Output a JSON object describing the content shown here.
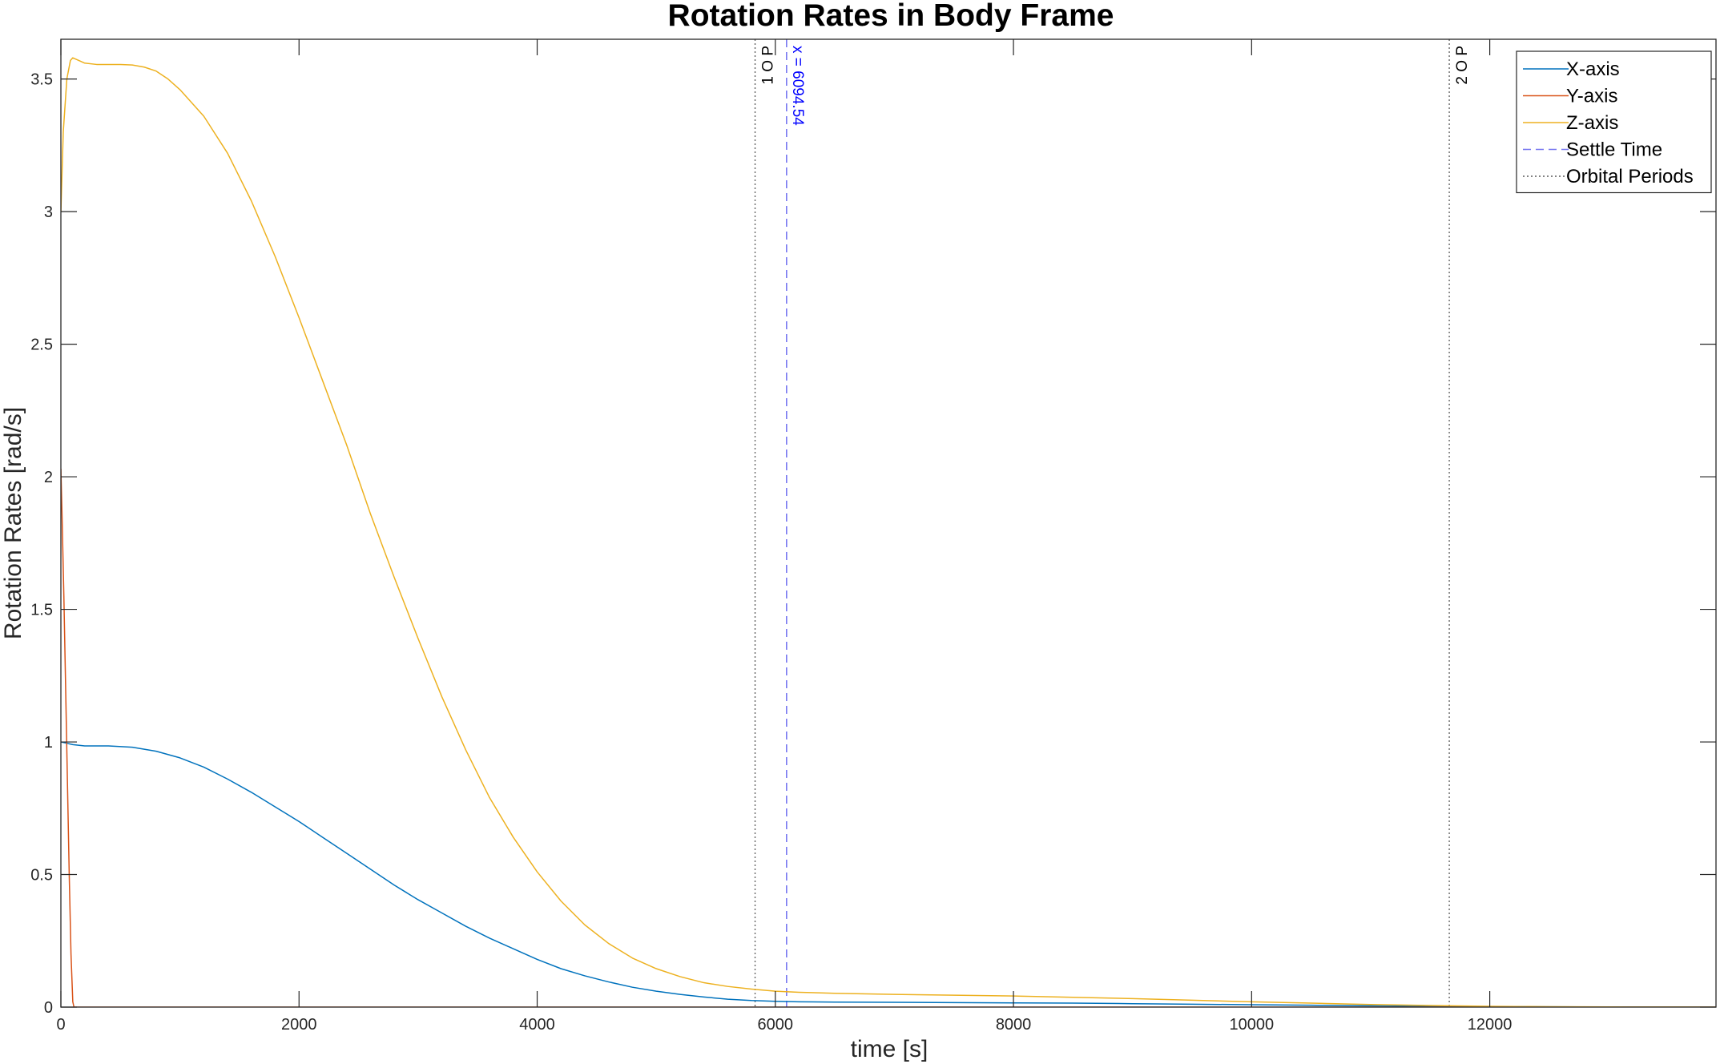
{
  "chart_data": {
    "type": "line",
    "title": "Rotation Rates in Body Frame",
    "xlabel": "time [s]",
    "ylabel": "Rotation Rates  [rad/s]",
    "xlim": [
      0,
      13900
    ],
    "ylim": [
      0,
      3.65
    ],
    "x_ticks": [
      0,
      2000,
      4000,
      6000,
      8000,
      10000,
      12000
    ],
    "x_tick_labels": [
      "0",
      "2000",
      "4000",
      "6000",
      "8000",
      "10000",
      "12000"
    ],
    "y_ticks": [
      0,
      0.5,
      1,
      1.5,
      2,
      2.5,
      3,
      3.5
    ],
    "y_tick_labels": [
      "0",
      "0.5",
      "1",
      "1.5",
      "2",
      "2.5",
      "3",
      "3.5"
    ],
    "grid": false,
    "legend_position": "top-right",
    "series": [
      {
        "name": "X-axis",
        "color": "#0072BD",
        "style": "solid",
        "x": [
          0,
          50,
          100,
          200,
          400,
          600,
          800,
          1000,
          1200,
          1400,
          1600,
          1800,
          2000,
          2200,
          2400,
          2600,
          2800,
          3000,
          3200,
          3400,
          3600,
          3800,
          4000,
          4200,
          4400,
          4600,
          4800,
          5000,
          5200,
          5400,
          5600,
          5800,
          6000,
          6200,
          6500,
          7000,
          7500,
          8000,
          8500,
          9000,
          9500,
          10000,
          10500,
          11000,
          11500,
          12000,
          12500,
          13000,
          13500,
          13900
        ],
        "y": [
          1.0,
          0.995,
          0.99,
          0.985,
          0.985,
          0.98,
          0.965,
          0.94,
          0.905,
          0.86,
          0.81,
          0.755,
          0.7,
          0.64,
          0.58,
          0.52,
          0.46,
          0.405,
          0.355,
          0.305,
          0.26,
          0.22,
          0.18,
          0.145,
          0.118,
          0.095,
          0.075,
          0.06,
          0.048,
          0.038,
          0.03,
          0.025,
          0.022,
          0.02,
          0.019,
          0.018,
          0.017,
          0.016,
          0.015,
          0.013,
          0.011,
          0.009,
          0.007,
          0.005,
          0.003,
          0.002,
          0.001,
          0.0005,
          0.0002,
          0.0
        ]
      },
      {
        "name": "Y-axis",
        "color": "#D95319",
        "style": "solid",
        "x": [
          0,
          10,
          25,
          40,
          55,
          70,
          85,
          100,
          110,
          120,
          500,
          2000,
          5000,
          8000,
          11000,
          13900
        ],
        "y": [
          2.03,
          1.85,
          1.55,
          1.2,
          0.85,
          0.5,
          0.2,
          0.02,
          0.0,
          0.0,
          0.0,
          0.0,
          0.0,
          0.0,
          0.0,
          0.0
        ],
        "mode": "line"
      },
      {
        "name": "Z-axis",
        "color": "#EDB120",
        "style": "solid",
        "x": [
          0,
          20,
          50,
          80,
          100,
          150,
          200,
          300,
          400,
          500,
          600,
          700,
          800,
          900,
          1000,
          1200,
          1400,
          1600,
          1800,
          2000,
          2200,
          2400,
          2600,
          2800,
          3000,
          3200,
          3400,
          3600,
          3800,
          4000,
          4200,
          4400,
          4600,
          4800,
          5000,
          5200,
          5400,
          5600,
          5800,
          6000,
          6200,
          6500,
          7000,
          7500,
          8000,
          8500,
          9000,
          9500,
          10000,
          10500,
          11000,
          11500,
          12000,
          12500,
          13000,
          13500,
          13900
        ],
        "y": [
          3.0,
          3.3,
          3.5,
          3.57,
          3.58,
          3.57,
          3.56,
          3.555,
          3.555,
          3.555,
          3.553,
          3.545,
          3.53,
          3.5,
          3.46,
          3.36,
          3.22,
          3.04,
          2.83,
          2.6,
          2.36,
          2.12,
          1.86,
          1.62,
          1.39,
          1.17,
          0.97,
          0.79,
          0.64,
          0.51,
          0.4,
          0.31,
          0.24,
          0.185,
          0.145,
          0.115,
          0.092,
          0.078,
          0.068,
          0.06,
          0.056,
          0.052,
          0.048,
          0.045,
          0.042,
          0.037,
          0.032,
          0.026,
          0.02,
          0.015,
          0.01,
          0.006,
          0.003,
          0.0015,
          0.0007,
          0.0002,
          0.0
        ]
      }
    ],
    "vlines": [
      {
        "name": "Settle Time",
        "x": 6094.54,
        "color": "#7575F0",
        "style": "dashed",
        "label": "x = 6094.54",
        "label_color": "#0000FF"
      },
      {
        "name": "Orbital Periods",
        "x": 5830,
        "color": "#5a5a5a",
        "style": "dotted",
        "label": "1 O P",
        "label_color": "#000000"
      },
      {
        "name": "",
        "x": 11660,
        "color": "#5a5a5a",
        "style": "dotted",
        "label": "2 O P",
        "label_color": "#000000"
      }
    ],
    "legend": [
      {
        "label": "X-axis",
        "color": "#0072BD",
        "style": "solid"
      },
      {
        "label": "Y-axis",
        "color": "#D95319",
        "style": "solid"
      },
      {
        "label": "Z-axis",
        "color": "#EDB120",
        "style": "solid"
      },
      {
        "label": "Settle Time",
        "color": "#7575F0",
        "style": "dashed"
      },
      {
        "label": "Orbital Periods",
        "color": "#5a5a5a",
        "style": "dotted"
      }
    ]
  }
}
